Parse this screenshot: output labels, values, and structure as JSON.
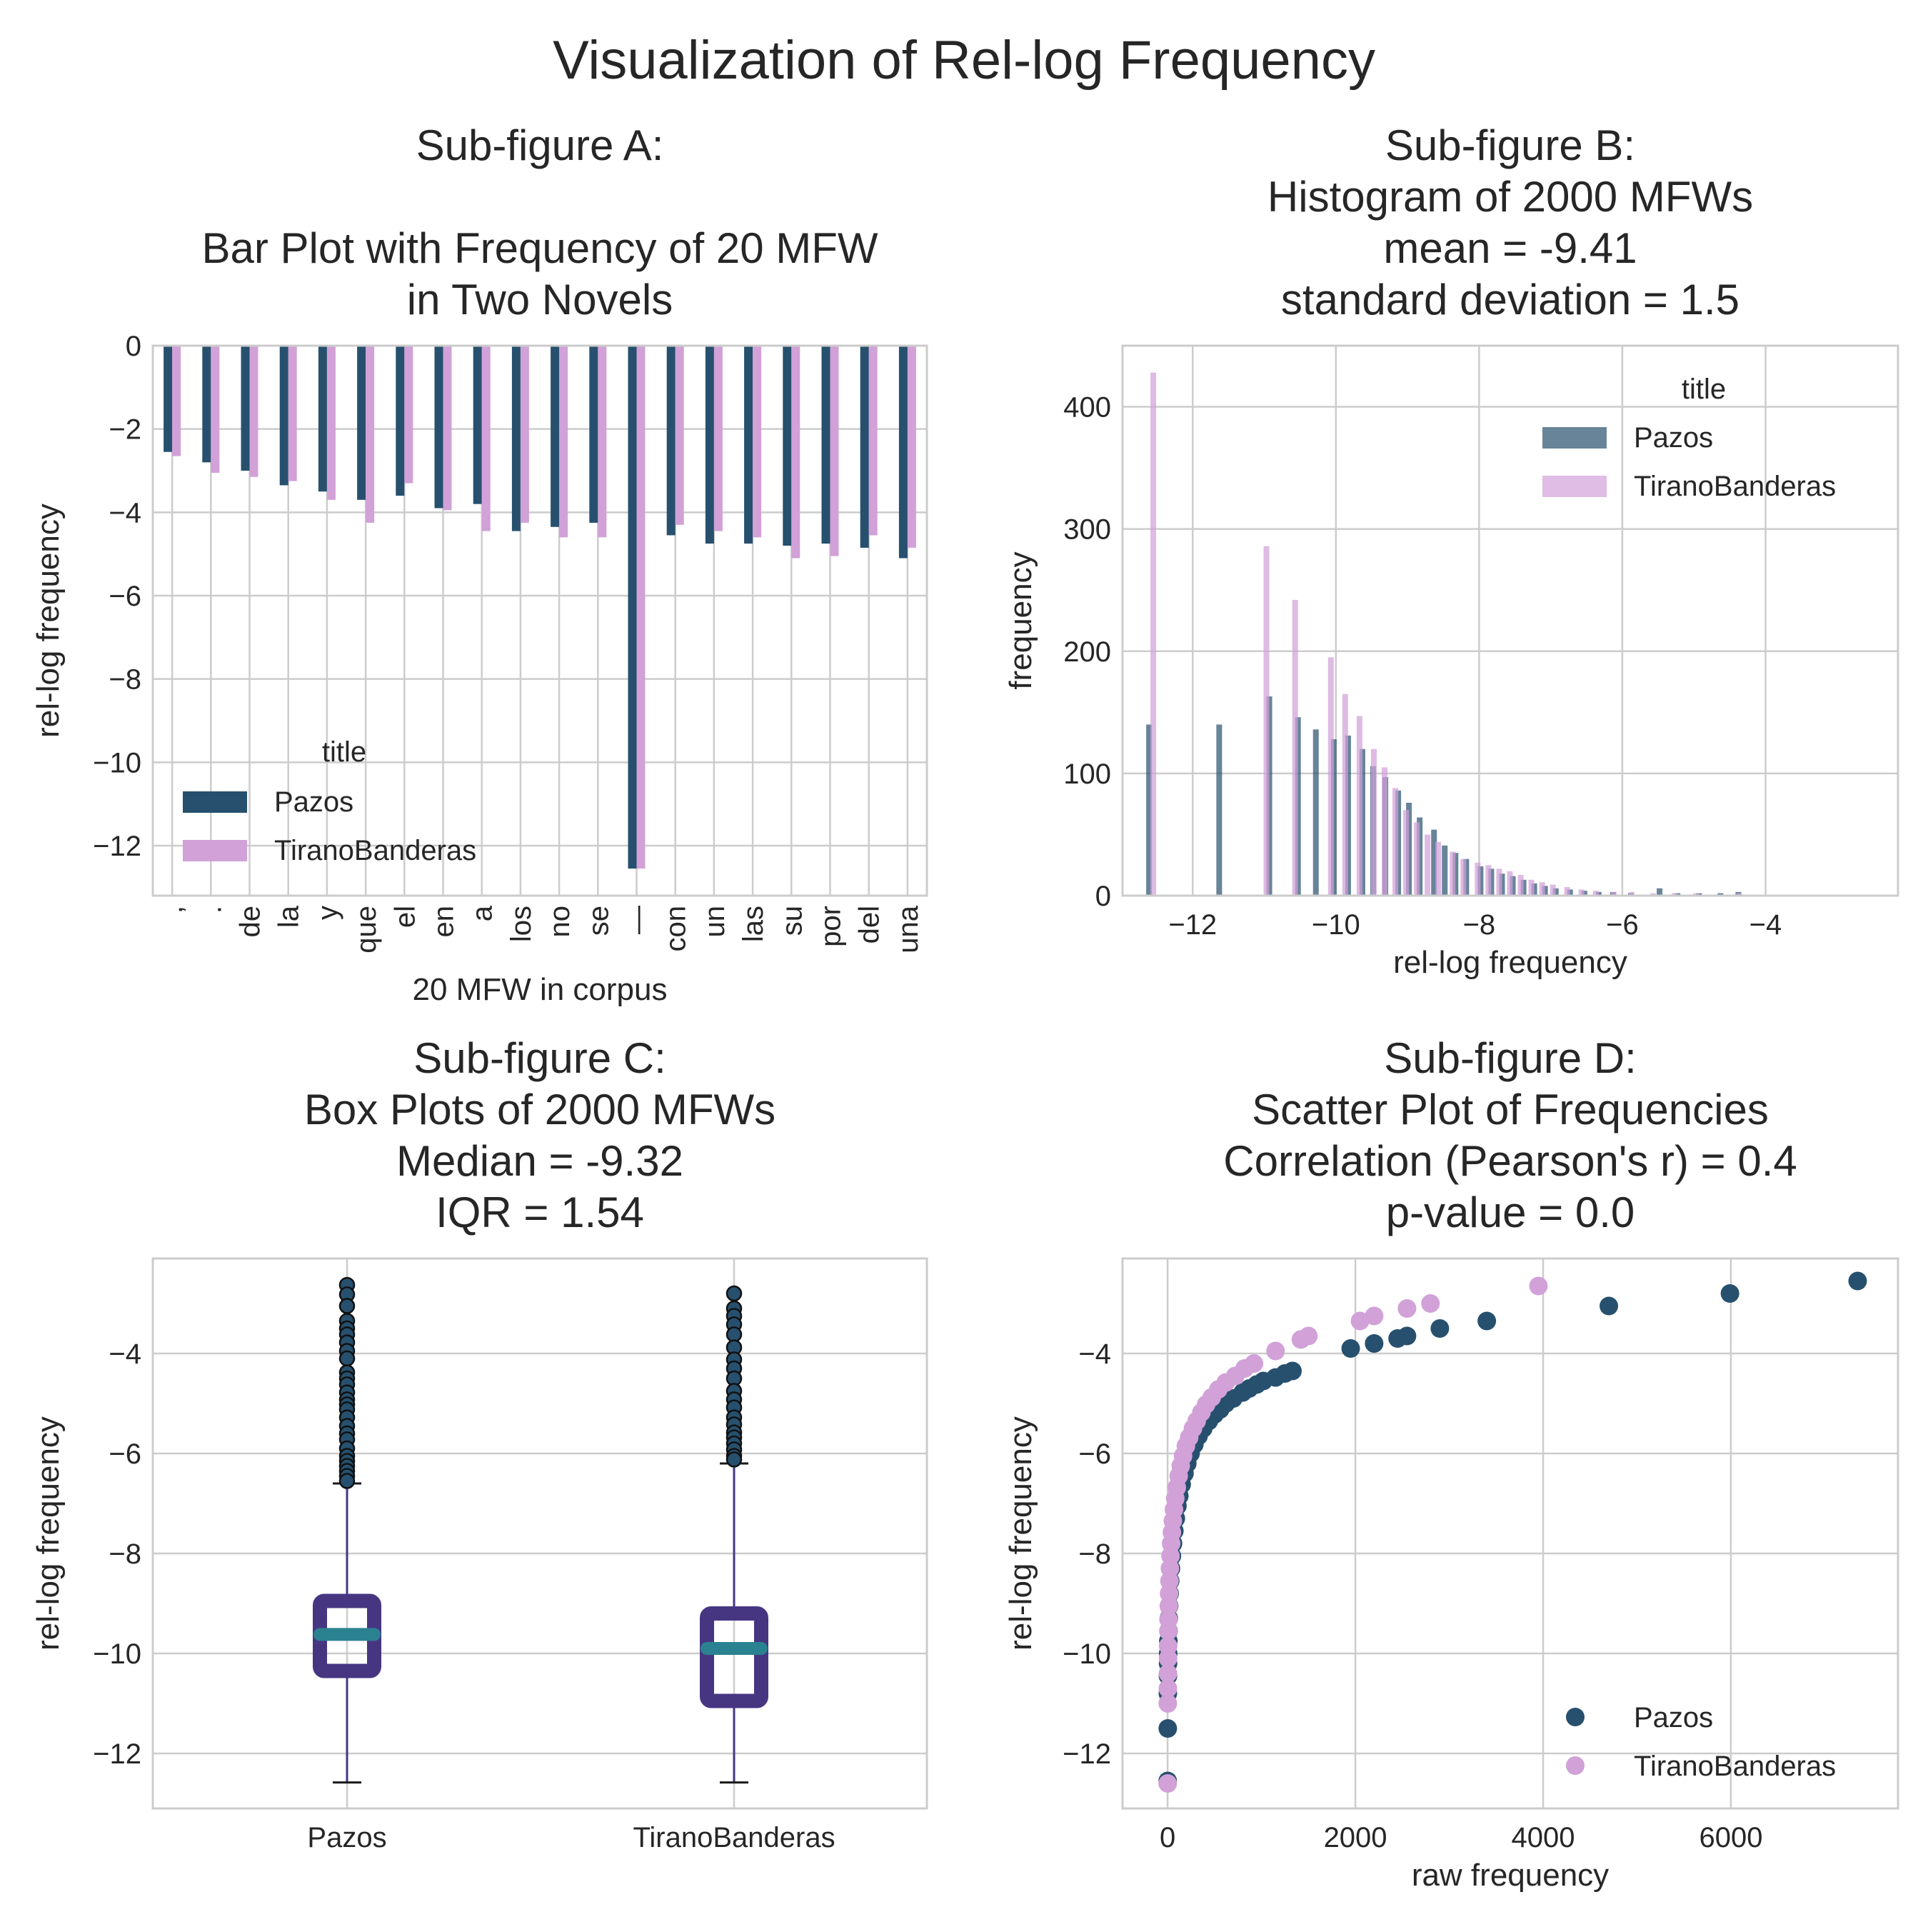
{
  "figure_title": "Visualization of Rel-log Frequency",
  "colors": {
    "pazos": "#26506e",
    "tirano": "#d1a1d8",
    "box": "#463682",
    "median": "#2a8291",
    "grid": "#cccccc",
    "frame": "#cccccc",
    "text": "#262626"
  },
  "chart_data": [
    {
      "id": "A",
      "type": "bar",
      "title_lines": [
        "Sub-figure A:",
        "",
        "Bar Plot with Frequency of 20 MFW",
        "in Two Novels"
      ],
      "xlabel": "20 MFW in corpus",
      "ylabel": "rel-log frequency",
      "ylim": [
        -13.2,
        0
      ],
      "yticks": [
        0,
        -2,
        -4,
        -6,
        -8,
        -10,
        -12
      ],
      "ytick_labels": [
        "0",
        "−2",
        "−4",
        "−6",
        "−8",
        "−10",
        "−12"
      ],
      "categories": [
        ",",
        ".",
        "de",
        "la",
        "y",
        "que",
        "el",
        "en",
        "a",
        "los",
        "no",
        "se",
        "—",
        "con",
        "un",
        "las",
        "su",
        "por",
        "del",
        "una"
      ],
      "series": [
        {
          "name": "Pazos",
          "color_key": "pazos",
          "values": [
            -2.55,
            -2.8,
            -3.0,
            -3.35,
            -3.5,
            -3.7,
            -3.6,
            -3.9,
            -3.8,
            -4.45,
            -4.35,
            -4.25,
            -12.55,
            -4.55,
            -4.75,
            -4.75,
            -4.8,
            -4.75,
            -4.85,
            -5.1
          ]
        },
        {
          "name": "TiranoBanderas",
          "color_key": "tirano",
          "values": [
            -2.65,
            -3.05,
            -3.15,
            -3.25,
            -3.7,
            -4.25,
            -3.3,
            -3.95,
            -4.45,
            -4.25,
            -4.6,
            -4.6,
            -12.55,
            -4.3,
            -4.45,
            -4.6,
            -5.1,
            -5.05,
            -4.55,
            -4.85
          ]
        }
      ],
      "legend": {
        "title": "title",
        "position": "lower-left"
      },
      "grid": true
    },
    {
      "id": "B",
      "type": "bar",
      "subtype": "histogram",
      "title_lines": [
        "Sub-figure B:",
        "Histogram of 2000 MFWs",
        "mean =  -9.41",
        "standard deviation = 1.5"
      ],
      "xlabel": "rel-log frequency",
      "ylabel": "frequency",
      "xlim": [
        -12.98,
        -2.15
      ],
      "ylim": [
        0,
        450
      ],
      "xticks": [
        -12,
        -10,
        -8,
        -6,
        -4
      ],
      "xtick_labels": [
        "−12",
        "−10",
        "−8",
        "−6",
        "−4"
      ],
      "yticks": [
        0,
        100,
        200,
        300,
        400
      ],
      "ytick_labels": [
        "0",
        "100",
        "200",
        "300",
        "400"
      ],
      "series": [
        {
          "name": "Pazos",
          "color_key": "pazos",
          "x": [
            -12.58,
            -11.6,
            -10.9,
            -10.5,
            -10.25,
            -10.0,
            -9.8,
            -9.6,
            -9.45,
            -9.28,
            -9.1,
            -8.95,
            -8.8,
            -8.6,
            -8.45,
            -8.3,
            -8.15,
            -7.95,
            -7.8,
            -7.65,
            -7.5,
            -7.35,
            -7.2,
            -7.05,
            -6.9,
            -6.7,
            -6.5,
            -6.3,
            -6.1,
            -5.85,
            -5.45,
            -5.2,
            -4.9,
            -4.6,
            -4.35
          ],
          "counts": [
            140,
            140,
            163,
            146,
            136,
            128,
            131,
            120,
            106,
            97,
            86,
            76,
            64,
            54,
            41,
            35,
            30,
            24,
            22,
            18,
            16,
            13,
            10,
            8,
            6,
            5,
            4,
            3,
            3,
            2,
            6,
            2,
            2,
            2,
            3
          ]
        },
        {
          "name": "TiranoBanderas",
          "color_key": "tirano",
          "x": [
            -12.58,
            -11.0,
            -10.6,
            -10.1,
            -9.9,
            -9.7,
            -9.5,
            -9.35,
            -9.2,
            -9.05,
            -8.9,
            -8.75,
            -8.6,
            -8.4,
            -8.25,
            -8.05,
            -7.9,
            -7.75,
            -7.6,
            -7.45,
            -7.3,
            -7.15,
            -7.0,
            -6.8,
            -6.6,
            -6.4,
            -6.15,
            -5.9,
            -5.6,
            -5.3,
            -5.0,
            -4.7,
            -4.4
          ],
          "counts": [
            428,
            286,
            242,
            195,
            165,
            147,
            120,
            105,
            88,
            70,
            60,
            50,
            44,
            36,
            30,
            27,
            25,
            22,
            20,
            17,
            13,
            11,
            9,
            7,
            5,
            4,
            3,
            3,
            2,
            2,
            2,
            1,
            2
          ]
        }
      ],
      "legend": {
        "title": "title",
        "position": "upper-right"
      },
      "grid": true
    },
    {
      "id": "C",
      "type": "box",
      "title_lines": [
        "Sub-figure C:",
        "Box Plots of 2000 MFWs",
        "Median =  -9.32",
        "IQR = 1.54"
      ],
      "xlabel": "",
      "ylabel": "rel-log frequency",
      "ylim": [
        -13.1,
        -2.1
      ],
      "yticks": [
        -4,
        -6,
        -8,
        -10,
        -12
      ],
      "ytick_labels": [
        "−4",
        "−6",
        "−8",
        "−10",
        "−12"
      ],
      "categories": [
        "Pazos",
        "TiranoBanderas"
      ],
      "boxes": [
        {
          "name": "Pazos",
          "whislo": -12.58,
          "q1": -10.35,
          "med": -9.62,
          "q3": -8.95,
          "whishi": -6.6,
          "fliers": [
            -2.63,
            -2.82,
            -3.05,
            -3.35,
            -3.5,
            -3.62,
            -3.78,
            -3.95,
            -4.1,
            -4.38,
            -4.5,
            -4.62,
            -4.78,
            -4.92,
            -5.02,
            -5.12,
            -5.28,
            -5.45,
            -5.6,
            -5.72,
            -5.9,
            -6.05,
            -6.15,
            -6.25,
            -6.35,
            -6.45,
            -6.55
          ]
        },
        {
          "name": "TiranoBanderas",
          "whislo": -12.58,
          "q1": -10.95,
          "med": -9.9,
          "q3": -9.2,
          "whishi": -6.2,
          "fliers": [
            -2.8,
            -3.1,
            -3.25,
            -3.42,
            -3.62,
            -3.88,
            -4.12,
            -4.3,
            -4.5,
            -4.75,
            -4.92,
            -5.08,
            -5.28,
            -5.42,
            -5.58,
            -5.68,
            -5.8,
            -5.92,
            -6.05,
            -6.12
          ]
        }
      ],
      "grid": true
    },
    {
      "id": "D",
      "type": "scatter",
      "title_lines": [
        "Sub-figure D:",
        "Scatter Plot of Frequencies",
        "Correlation (Pearson's r) =  0.4",
        "p-value = 0.0"
      ],
      "xlabel": "raw frequency",
      "ylabel": "rel-log frequency",
      "xlim": [
        -480,
        7780
      ],
      "ylim": [
        -13.1,
        -2.1
      ],
      "xticks": [
        0,
        2000,
        4000,
        6000
      ],
      "xtick_labels": [
        "0",
        "2000",
        "4000",
        "6000"
      ],
      "yticks": [
        -4,
        -6,
        -8,
        -10,
        -12
      ],
      "ytick_labels": [
        "−4",
        "−6",
        "−8",
        "−10",
        "−12"
      ],
      "series": [
        {
          "name": "Pazos",
          "color_key": "pazos",
          "points": [
            [
              7350,
              -2.55
            ],
            [
              5990,
              -2.8
            ],
            [
              4700,
              -3.05
            ],
            [
              3400,
              -3.35
            ],
            [
              2900,
              -3.5
            ],
            [
              2550,
              -3.65
            ],
            [
              2450,
              -3.7
            ],
            [
              2200,
              -3.8
            ],
            [
              1950,
              -3.9
            ],
            [
              1330,
              -4.35
            ],
            [
              1250,
              -4.4
            ],
            [
              1150,
              -4.48
            ],
            [
              1020,
              -4.55
            ],
            [
              950,
              -4.62
            ],
            [
              870,
              -4.7
            ],
            [
              800,
              -4.78
            ],
            [
              700,
              -4.9
            ],
            [
              620,
              -5.0
            ],
            [
              560,
              -5.12
            ],
            [
              500,
              -5.22
            ],
            [
              440,
              -5.35
            ],
            [
              380,
              -5.5
            ],
            [
              330,
              -5.65
            ],
            [
              285,
              -5.82
            ],
            [
              245,
              -6.0
            ],
            [
              210,
              -6.2
            ],
            [
              180,
              -6.4
            ],
            [
              150,
              -6.62
            ],
            [
              125,
              -6.85
            ],
            [
              105,
              -7.05
            ],
            [
              88,
              -7.3
            ],
            [
              72,
              -7.55
            ],
            [
              58,
              -7.8
            ],
            [
              46,
              -8.05
            ],
            [
              36,
              -8.3
            ],
            [
              28,
              -8.55
            ],
            [
              22,
              -8.8
            ],
            [
              17,
              -9.05
            ],
            [
              13,
              -9.3
            ],
            [
              10,
              -9.55
            ],
            [
              8,
              -9.75
            ],
            [
              6,
              -10.0
            ],
            [
              5,
              -10.2
            ],
            [
              4,
              -10.45
            ],
            [
              3,
              -10.8
            ],
            [
              2,
              -11.5
            ],
            [
              1,
              -12.55
            ]
          ]
        },
        {
          "name": "TiranoBanderas",
          "color_key": "tirano",
          "points": [
            [
              3950,
              -2.65
            ],
            [
              2800,
              -3.0
            ],
            [
              2550,
              -3.1
            ],
            [
              2200,
              -3.25
            ],
            [
              2050,
              -3.35
            ],
            [
              1500,
              -3.65
            ],
            [
              1420,
              -3.72
            ],
            [
              1150,
              -3.95
            ],
            [
              920,
              -4.2
            ],
            [
              820,
              -4.3
            ],
            [
              720,
              -4.45
            ],
            [
              620,
              -4.58
            ],
            [
              540,
              -4.72
            ],
            [
              470,
              -4.88
            ],
            [
              410,
              -5.02
            ],
            [
              360,
              -5.18
            ],
            [
              310,
              -5.35
            ],
            [
              270,
              -5.5
            ],
            [
              230,
              -5.68
            ],
            [
              195,
              -5.85
            ],
            [
              165,
              -6.05
            ],
            [
              140,
              -6.25
            ],
            [
              118,
              -6.45
            ],
            [
              98,
              -6.68
            ],
            [
              82,
              -6.9
            ],
            [
              68,
              -7.12
            ],
            [
              56,
              -7.35
            ],
            [
              46,
              -7.58
            ],
            [
              38,
              -7.8
            ],
            [
              31,
              -8.05
            ],
            [
              25,
              -8.3
            ],
            [
              20,
              -8.55
            ],
            [
              16,
              -8.8
            ],
            [
              13,
              -9.05
            ],
            [
              10,
              -9.32
            ],
            [
              8,
              -9.55
            ],
            [
              6,
              -9.85
            ],
            [
              5,
              -10.1
            ],
            [
              4,
              -10.4
            ],
            [
              3,
              -10.7
            ],
            [
              2,
              -11.0
            ],
            [
              1,
              -12.6
            ]
          ]
        }
      ],
      "legend": {
        "title": "",
        "position": "lower-right"
      },
      "grid": true
    }
  ]
}
